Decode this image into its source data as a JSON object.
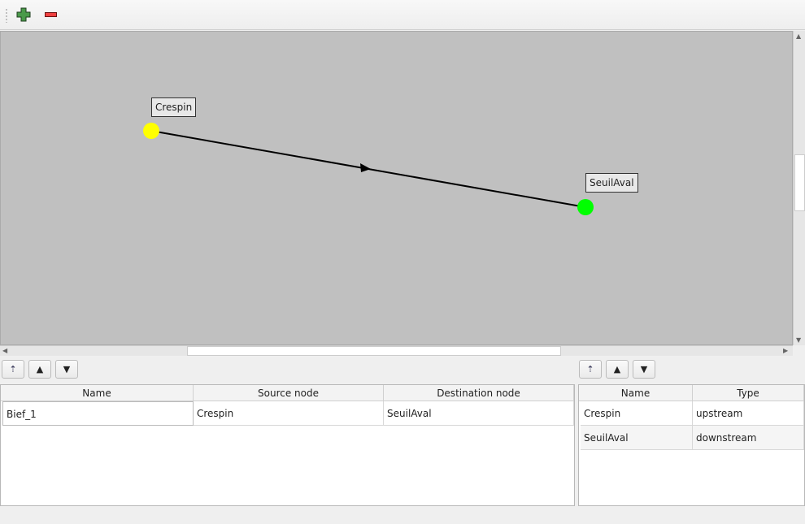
{
  "toolbar": {
    "add_icon": "plus-icon",
    "remove_icon": "minus-icon",
    "add_color": "#3c8c3c",
    "remove_color": "#e83030"
  },
  "graph": {
    "background": "#c0c0c0",
    "nodes": [
      {
        "name": "Crespin",
        "color": "#ffff00"
      },
      {
        "name": "SeuilAval",
        "color": "#00ff00"
      }
    ],
    "edges": [
      {
        "source": "Crespin",
        "destination": "SeuilAval"
      }
    ]
  },
  "edges_table": {
    "columns": [
      "Name",
      "Source node",
      "Destination node"
    ],
    "rows": [
      [
        "Bief_1",
        "Crespin",
        "SeuilAval"
      ]
    ]
  },
  "nodes_table": {
    "columns": [
      "Name",
      "Type"
    ],
    "rows": [
      [
        "Crespin",
        "upstream"
      ],
      [
        "SeuilAval",
        "downstream"
      ]
    ]
  },
  "icons": {
    "sort": "sort-icon",
    "up": "arrow-up-icon",
    "down": "arrow-down-icon"
  }
}
